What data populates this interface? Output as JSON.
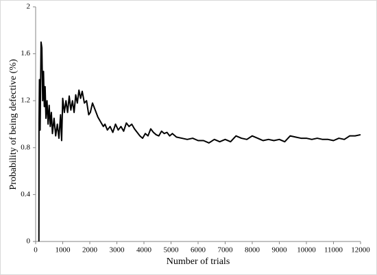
{
  "chart_data": {
    "type": "line",
    "xlabel": "Number of trials",
    "ylabel": "Probability of being defective (%)",
    "xlim": [
      0,
      12000
    ],
    "xticks": [
      0,
      1000,
      2000,
      3000,
      4000,
      5000,
      6000,
      7000,
      8000,
      9000,
      10000,
      11000,
      12000
    ],
    "ylim": [
      0,
      2
    ],
    "yticks": [
      0,
      0.4,
      0.8,
      1.2,
      1.6,
      2
    ],
    "series": [
      {
        "name": null,
        "color": "#000000",
        "x": [
          120,
          125,
          140,
          165,
          200,
          230,
          260,
          290,
          320,
          350,
          380,
          420,
          460,
          500,
          540,
          580,
          620,
          680,
          740,
          800,
          860,
          920,
          960,
          1000,
          1060,
          1120,
          1180,
          1240,
          1300,
          1360,
          1420,
          1480,
          1540,
          1600,
          1660,
          1720,
          1800,
          1880,
          1960,
          2020,
          2100,
          2200,
          2300,
          2400,
          2500,
          2560,
          2650,
          2750,
          2850,
          2950,
          3050,
          3150,
          3250,
          3350,
          3450,
          3550,
          3650,
          3750,
          3850,
          3950,
          4050,
          4150,
          4250,
          4350,
          4450,
          4550,
          4650,
          4750,
          4850,
          4950,
          5050,
          5200,
          5400,
          5600,
          5800,
          6000,
          6200,
          6400,
          6600,
          6800,
          7000,
          7200,
          7400,
          7600,
          7800,
          8000,
          8200,
          8400,
          8600,
          8800,
          9000,
          9200,
          9400,
          9600,
          9800,
          10000,
          10200,
          10400,
          10600,
          10800,
          11000,
          11200,
          11400,
          11600,
          11800,
          12000
        ],
        "values": [
          0,
          1.0,
          1.38,
          0.95,
          1.7,
          1.65,
          1.2,
          1.45,
          1.15,
          1.32,
          1.05,
          1.2,
          1.0,
          1.16,
          0.98,
          1.1,
          0.92,
          1.05,
          0.9,
          1.0,
          0.88,
          1.08,
          0.86,
          1.22,
          1.1,
          1.2,
          1.1,
          1.24,
          1.12,
          1.2,
          1.1,
          1.25,
          1.18,
          1.29,
          1.22,
          1.28,
          1.18,
          1.2,
          1.08,
          1.1,
          1.18,
          1.12,
          1.06,
          1.02,
          0.98,
          1.0,
          0.95,
          0.98,
          0.93,
          1.0,
          0.95,
          0.98,
          0.94,
          1.01,
          0.98,
          1.0,
          0.96,
          0.93,
          0.9,
          0.88,
          0.92,
          0.9,
          0.96,
          0.93,
          0.91,
          0.9,
          0.94,
          0.92,
          0.93,
          0.9,
          0.92,
          0.89,
          0.88,
          0.87,
          0.88,
          0.86,
          0.86,
          0.84,
          0.87,
          0.85,
          0.87,
          0.85,
          0.9,
          0.88,
          0.87,
          0.9,
          0.88,
          0.86,
          0.87,
          0.86,
          0.87,
          0.85,
          0.9,
          0.89,
          0.88,
          0.88,
          0.87,
          0.88,
          0.87,
          0.87,
          0.86,
          0.88,
          0.87,
          0.9,
          0.9,
          0.91
        ]
      }
    ]
  }
}
